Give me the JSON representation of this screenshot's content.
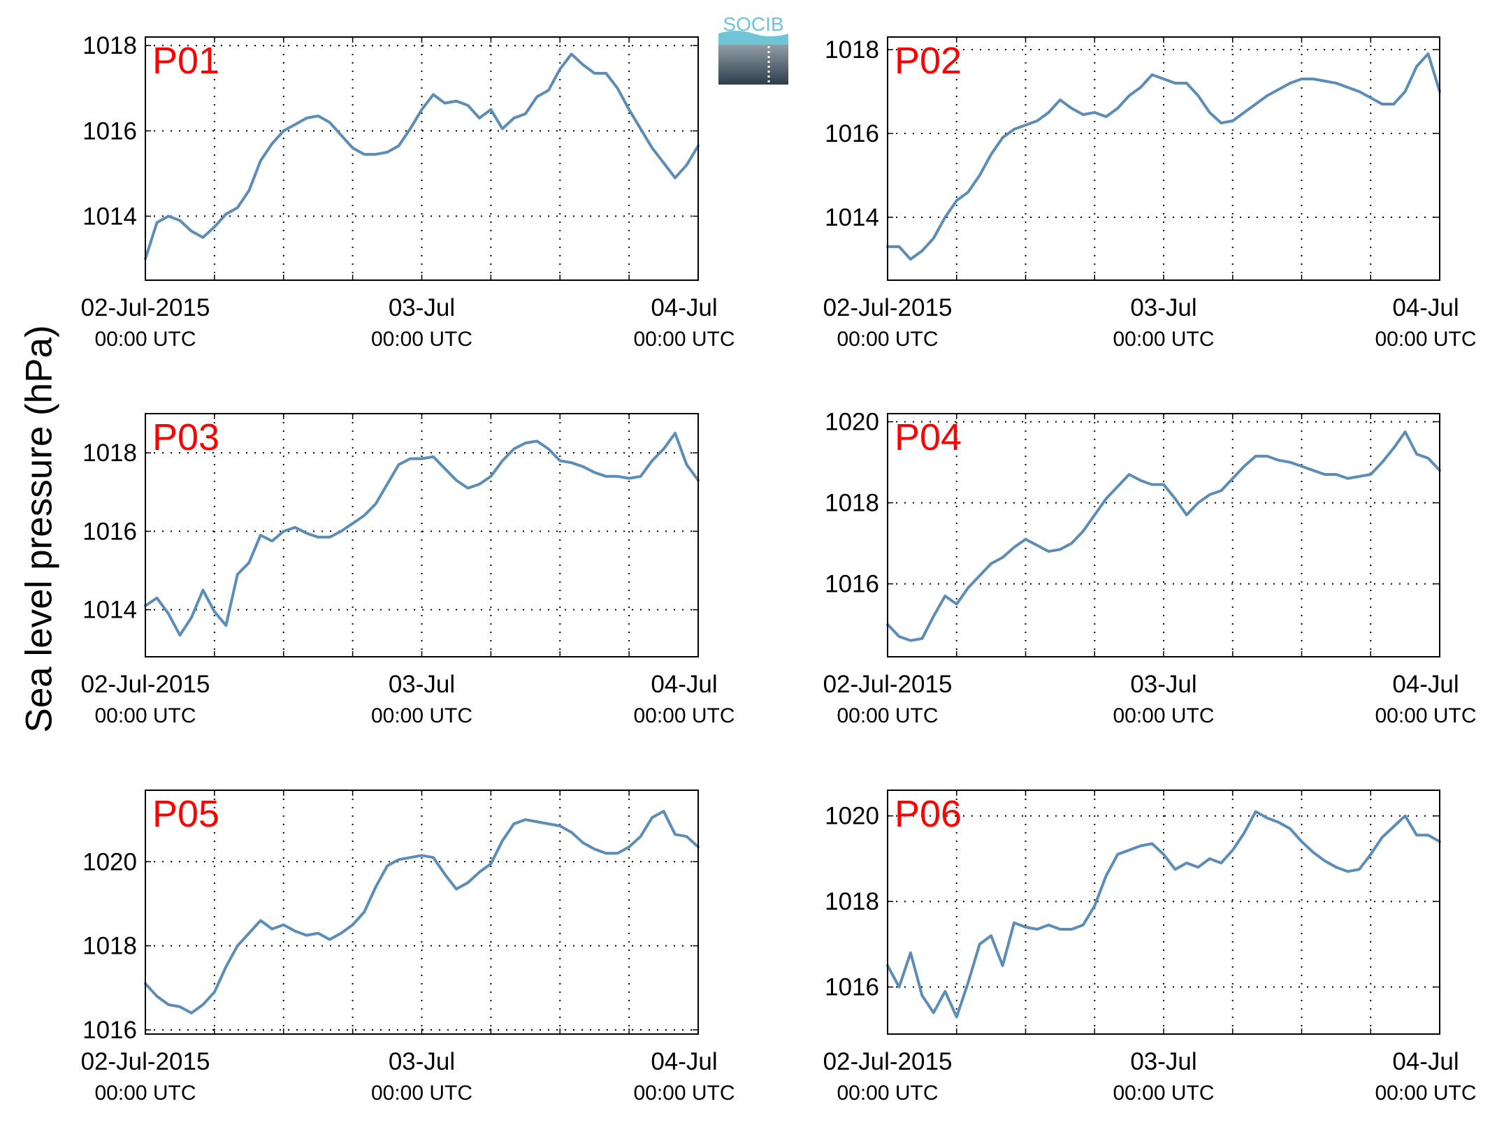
{
  "figure": {
    "ylabel": "Sea level pressure (hPa)",
    "logo_text": "SOCIB",
    "line_color": "#5b8db6",
    "panel_label_color": "#ff0000"
  },
  "chart_data": [
    {
      "type": "line",
      "panel": "P01",
      "xlabel": "",
      "ylabel": "Sea level pressure (hPa)",
      "x_unit": "hours since 02-Jul-2015 00:00 UTC",
      "xlim": [
        0,
        48
      ],
      "ylim": [
        1012.5,
        1018.2
      ],
      "grid": true,
      "yticks": [
        1014,
        1016,
        1018
      ],
      "xtick_labels": [
        [
          "02-Jul-2015",
          "00:00 UTC"
        ],
        [
          "03-Jul",
          "00:00 UTC"
        ],
        [
          "04-Jul",
          "00:00 UTC"
        ]
      ],
      "x": [
        0,
        1,
        2,
        3,
        4,
        5,
        6,
        7,
        8,
        9,
        10,
        11,
        12,
        13,
        14,
        15,
        16,
        17,
        18,
        19,
        20,
        21,
        22,
        23,
        24,
        25,
        26,
        27,
        28,
        29,
        30,
        31,
        32,
        33,
        34,
        35,
        36,
        37,
        38,
        39,
        40,
        41,
        42,
        43,
        44,
        45,
        46,
        47,
        48
      ],
      "y": [
        1013.0,
        1013.85,
        1014.0,
        1013.9,
        1013.65,
        1013.5,
        1013.75,
        1014.05,
        1014.2,
        1014.6,
        1015.3,
        1015.7,
        1016.0,
        1016.15,
        1016.3,
        1016.35,
        1016.2,
        1015.9,
        1015.6,
        1015.45,
        1015.45,
        1015.5,
        1015.65,
        1016.05,
        1016.5,
        1016.85,
        1016.65,
        1016.7,
        1016.6,
        1016.3,
        1016.5,
        1016.05,
        1016.3,
        1016.4,
        1016.8,
        1016.95,
        1017.45,
        1017.8,
        1017.55,
        1017.35,
        1017.35,
        1017.0,
        1016.5,
        1016.05,
        1015.6,
        1015.25,
        1014.9,
        1015.2,
        1015.65
      ]
    },
    {
      "type": "line",
      "panel": "P02",
      "xlabel": "",
      "ylabel": "Sea level pressure (hPa)",
      "x_unit": "hours since 02-Jul-2015 00:00 UTC",
      "xlim": [
        0,
        48
      ],
      "ylim": [
        1012.5,
        1018.3
      ],
      "grid": true,
      "yticks": [
        1014,
        1016,
        1018
      ],
      "xtick_labels": [
        [
          "02-Jul-2015",
          "00:00 UTC"
        ],
        [
          "03-Jul",
          "00:00 UTC"
        ],
        [
          "04-Jul",
          "00:00 UTC"
        ]
      ],
      "x": [
        0,
        1,
        2,
        3,
        4,
        5,
        6,
        7,
        8,
        9,
        10,
        11,
        12,
        13,
        14,
        15,
        16,
        17,
        18,
        19,
        20,
        21,
        22,
        23,
        24,
        25,
        26,
        27,
        28,
        29,
        30,
        31,
        32,
        33,
        34,
        35,
        36,
        37,
        38,
        39,
        40,
        41,
        42,
        43,
        44,
        45,
        46,
        47,
        48
      ],
      "y": [
        1013.3,
        1013.3,
        1013.0,
        1013.2,
        1013.5,
        1014.0,
        1014.4,
        1014.6,
        1015.0,
        1015.5,
        1015.9,
        1016.1,
        1016.2,
        1016.3,
        1016.5,
        1016.8,
        1016.6,
        1016.45,
        1016.5,
        1016.4,
        1016.6,
        1016.9,
        1017.1,
        1017.4,
        1017.3,
        1017.2,
        1017.2,
        1016.9,
        1016.5,
        1016.25,
        1016.3,
        1016.5,
        1016.7,
        1016.9,
        1017.05,
        1017.2,
        1017.3,
        1017.3,
        1017.25,
        1017.2,
        1017.1,
        1017.0,
        1016.85,
        1016.7,
        1016.7,
        1017.0,
        1017.6,
        1017.9,
        1017.0
      ]
    },
    {
      "type": "line",
      "panel": "P03",
      "xlabel": "",
      "ylabel": "Sea level pressure (hPa)",
      "x_unit": "hours since 02-Jul-2015 00:00 UTC",
      "xlim": [
        0,
        48
      ],
      "ylim": [
        1012.8,
        1019.0
      ],
      "grid": true,
      "yticks": [
        1014,
        1016,
        1018
      ],
      "xtick_labels": [
        [
          "02-Jul-2015",
          "00:00 UTC"
        ],
        [
          "03-Jul",
          "00:00 UTC"
        ],
        [
          "04-Jul",
          "00:00 UTC"
        ]
      ],
      "x": [
        0,
        1,
        2,
        3,
        4,
        5,
        6,
        7,
        8,
        9,
        10,
        11,
        12,
        13,
        14,
        15,
        16,
        17,
        18,
        19,
        20,
        21,
        22,
        23,
        24,
        25,
        26,
        27,
        28,
        29,
        30,
        31,
        32,
        33,
        34,
        35,
        36,
        37,
        38,
        39,
        40,
        41,
        42,
        43,
        44,
        45,
        46,
        47,
        48
      ],
      "y": [
        1014.1,
        1014.3,
        1013.9,
        1013.35,
        1013.8,
        1014.5,
        1013.95,
        1013.6,
        1014.9,
        1015.2,
        1015.9,
        1015.75,
        1016.0,
        1016.1,
        1015.95,
        1015.85,
        1015.85,
        1016.0,
        1016.2,
        1016.4,
        1016.7,
        1017.2,
        1017.7,
        1017.85,
        1017.85,
        1017.9,
        1017.6,
        1017.3,
        1017.1,
        1017.2,
        1017.4,
        1017.8,
        1018.1,
        1018.25,
        1018.3,
        1018.1,
        1017.8,
        1017.75,
        1017.65,
        1017.5,
        1017.4,
        1017.4,
        1017.35,
        1017.4,
        1017.8,
        1018.1,
        1018.5,
        1017.7,
        1017.3
      ]
    },
    {
      "type": "line",
      "panel": "P04",
      "xlabel": "",
      "ylabel": "Sea level pressure (hPa)",
      "x_unit": "hours since 02-Jul-2015 00:00 UTC",
      "xlim": [
        0,
        48
      ],
      "ylim": [
        1014.2,
        1020.2
      ],
      "grid": true,
      "yticks": [
        1016,
        1018,
        1020
      ],
      "xtick_labels": [
        [
          "02-Jul-2015",
          "00:00 UTC"
        ],
        [
          "03-Jul",
          "00:00 UTC"
        ],
        [
          "04-Jul",
          "00:00 UTC"
        ]
      ],
      "x": [
        0,
        1,
        2,
        3,
        4,
        5,
        6,
        7,
        8,
        9,
        10,
        11,
        12,
        13,
        14,
        15,
        16,
        17,
        18,
        19,
        20,
        21,
        22,
        23,
        24,
        25,
        26,
        27,
        28,
        29,
        30,
        31,
        32,
        33,
        34,
        35,
        36,
        37,
        38,
        39,
        40,
        41,
        42,
        43,
        44,
        45,
        46,
        47,
        48
      ],
      "y": [
        1015.0,
        1014.7,
        1014.6,
        1014.65,
        1015.2,
        1015.7,
        1015.5,
        1015.9,
        1016.2,
        1016.5,
        1016.65,
        1016.9,
        1017.1,
        1016.95,
        1016.8,
        1016.85,
        1017.0,
        1017.3,
        1017.7,
        1018.1,
        1018.4,
        1018.7,
        1018.55,
        1018.45,
        1018.45,
        1018.1,
        1017.7,
        1018.0,
        1018.2,
        1018.3,
        1018.6,
        1018.9,
        1019.15,
        1019.15,
        1019.05,
        1019.0,
        1018.9,
        1018.8,
        1018.7,
        1018.7,
        1018.6,
        1018.65,
        1018.7,
        1019.0,
        1019.35,
        1019.75,
        1019.2,
        1019.1,
        1018.8
      ]
    },
    {
      "type": "line",
      "panel": "P05",
      "xlabel": "",
      "ylabel": "Sea level pressure (hPa)",
      "x_unit": "hours since 02-Jul-2015 00:00 UTC",
      "xlim": [
        0,
        48
      ],
      "ylim": [
        1015.9,
        1021.7
      ],
      "grid": true,
      "yticks": [
        1016,
        1018,
        1020
      ],
      "xtick_labels": [
        [
          "02-Jul-2015",
          "00:00 UTC"
        ],
        [
          "03-Jul",
          "00:00 UTC"
        ],
        [
          "04-Jul",
          "00:00 UTC"
        ]
      ],
      "x": [
        0,
        1,
        2,
        3,
        4,
        5,
        6,
        7,
        8,
        9,
        10,
        11,
        12,
        13,
        14,
        15,
        16,
        17,
        18,
        19,
        20,
        21,
        22,
        23,
        24,
        25,
        26,
        27,
        28,
        29,
        30,
        31,
        32,
        33,
        34,
        35,
        36,
        37,
        38,
        39,
        40,
        41,
        42,
        43,
        44,
        45,
        46,
        47,
        48
      ],
      "y": [
        1017.1,
        1016.8,
        1016.6,
        1016.55,
        1016.4,
        1016.6,
        1016.9,
        1017.5,
        1018.0,
        1018.3,
        1018.6,
        1018.4,
        1018.5,
        1018.35,
        1018.25,
        1018.3,
        1018.15,
        1018.3,
        1018.5,
        1018.8,
        1019.4,
        1019.9,
        1020.05,
        1020.1,
        1020.15,
        1020.1,
        1019.7,
        1019.35,
        1019.5,
        1019.75,
        1019.95,
        1020.5,
        1020.9,
        1021.0,
        1020.95,
        1020.9,
        1020.85,
        1020.7,
        1020.45,
        1020.3,
        1020.2,
        1020.2,
        1020.35,
        1020.6,
        1021.05,
        1021.2,
        1020.65,
        1020.6,
        1020.35
      ]
    },
    {
      "type": "line",
      "panel": "P06",
      "xlabel": "",
      "ylabel": "Sea level pressure (hPa)",
      "x_unit": "hours since 02-Jul-2015 00:00 UTC",
      "xlim": [
        0,
        48
      ],
      "ylim": [
        1014.9,
        1020.6
      ],
      "grid": true,
      "yticks": [
        1016,
        1018,
        1020
      ],
      "xtick_labels": [
        [
          "02-Jul-2015",
          "00:00 UTC"
        ],
        [
          "03-Jul",
          "00:00 UTC"
        ],
        [
          "04-Jul",
          "00:00 UTC"
        ]
      ],
      "x": [
        0,
        1,
        2,
        3,
        4,
        5,
        6,
        7,
        8,
        9,
        10,
        11,
        12,
        13,
        14,
        15,
        16,
        17,
        18,
        19,
        20,
        21,
        22,
        23,
        24,
        25,
        26,
        27,
        28,
        29,
        30,
        31,
        32,
        33,
        34,
        35,
        36,
        37,
        38,
        39,
        40,
        41,
        42,
        43,
        44,
        45,
        46,
        47,
        48
      ],
      "y": [
        1016.5,
        1016.0,
        1016.8,
        1015.8,
        1015.4,
        1015.9,
        1015.3,
        1016.1,
        1017.0,
        1017.2,
        1016.5,
        1017.5,
        1017.4,
        1017.35,
        1017.45,
        1017.35,
        1017.35,
        1017.45,
        1017.9,
        1018.6,
        1019.1,
        1019.2,
        1019.3,
        1019.35,
        1019.1,
        1018.75,
        1018.9,
        1018.8,
        1019.0,
        1018.9,
        1019.2,
        1019.6,
        1020.1,
        1019.95,
        1019.85,
        1019.7,
        1019.4,
        1019.15,
        1018.95,
        1018.8,
        1018.7,
        1018.75,
        1019.1,
        1019.5,
        1019.75,
        1020.0,
        1019.55,
        1019.55,
        1019.4
      ]
    }
  ]
}
